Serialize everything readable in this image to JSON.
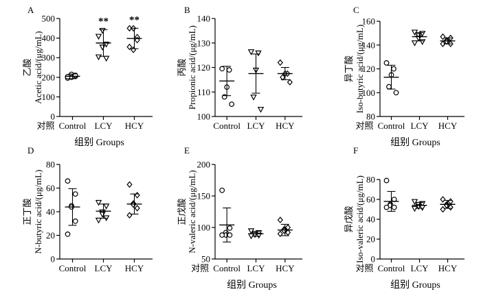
{
  "group_labels": [
    "Control",
    "LCY",
    "HCY"
  ],
  "chart_data": [
    {
      "panel_letter": "A",
      "type": "scatter",
      "ylabel_cn": "乙酸",
      "ylabel_en": "Acetic acid/(μg/mL)",
      "xlabel": "组别 Groups",
      "x_prefix": "对照",
      "ylim": [
        0,
        500
      ],
      "yticks": [
        0,
        100,
        200,
        300,
        400,
        500
      ],
      "marker_shapes": [
        "circle",
        "triangle-down",
        "diamond"
      ],
      "means": [
        205,
        375,
        398
      ],
      "sd": [
        12,
        68,
        52
      ],
      "points": [
        [
          196,
          205,
          215,
          200,
          210,
          203
        ],
        [
          305,
          370,
          440,
          355,
          298,
          410
        ],
        [
          355,
          405,
          450,
          340,
          390,
          450
        ]
      ],
      "significance": [
        "",
        "**",
        "**"
      ]
    },
    {
      "panel_letter": "B",
      "type": "scatter",
      "ylabel_cn": "丙酸",
      "ylabel_en": "Propionic acid/(μg/mL)",
      "xlabel": "",
      "x_prefix": "",
      "ylim": [
        100,
        140
      ],
      "yticks": [
        100,
        110,
        120,
        130,
        140
      ],
      "marker_shapes": [
        "circle",
        "triangle-down",
        "diamond"
      ],
      "means": [
        114.5,
        117.5,
        117.5
      ],
      "sd": [
        6,
        8,
        2.5
      ],
      "points": [
        [
          119.5,
          119,
          112,
          108,
          105
        ],
        [
          126.5,
          126,
          119,
          108,
          103
        ],
        [
          122,
          117.5,
          117.5,
          116,
          114
        ]
      ],
      "significance": [
        "",
        "",
        ""
      ]
    },
    {
      "panel_letter": "C",
      "type": "scatter",
      "ylabel_cn": "异丁酸",
      "ylabel_en": "Iso-butyric acid/(μg/mL)",
      "xlabel": "组别 Groups",
      "x_prefix": "对照",
      "ylim": [
        80,
        160
      ],
      "yticks": [
        80,
        100,
        120,
        140,
        160
      ],
      "marker_shapes": [
        "circle",
        "triangle-down",
        "diamond"
      ],
      "means": [
        113,
        147,
        143.5
      ],
      "sd": [
        10,
        3.5,
        2.5
      ],
      "points": [
        [
          125,
          120,
          115,
          105,
          100
        ],
        [
          151,
          150,
          148,
          146,
          143,
          142
        ],
        [
          147,
          146,
          144,
          143,
          141,
          141
        ]
      ],
      "significance": [
        "",
        "",
        ""
      ]
    },
    {
      "panel_letter": "D",
      "type": "scatter",
      "ylabel_cn": "正丁酸",
      "ylabel_en": "N-butyric acid/(μg/mL)",
      "xlabel": "",
      "x_prefix": "",
      "ylim": [
        0,
        80
      ],
      "yticks": [
        0,
        20,
        40,
        60,
        80
      ],
      "marker_shapes": [
        "circle",
        "triangle-down",
        "diamond"
      ],
      "means": [
        44,
        40.5,
        46.5
      ],
      "sd": [
        15.5,
        6,
        8.5
      ],
      "points": [
        [
          66,
          55,
          45,
          44,
          32,
          21
        ],
        [
          48,
          45,
          40,
          38,
          35,
          33
        ],
        [
          63,
          54,
          47,
          46,
          43,
          37
        ]
      ],
      "significance": [
        "",
        "",
        ""
      ]
    },
    {
      "panel_letter": "E",
      "type": "scatter",
      "ylabel_cn": "正戊酸",
      "ylabel_en": "N-valeric acid/(μg/mL)",
      "xlabel": "组别 Groups",
      "x_prefix": "对照",
      "ylim": [
        50,
        200
      ],
      "yticks": [
        50,
        100,
        150,
        200
      ],
      "marker_shapes": [
        "circle",
        "triangle-down",
        "diamond"
      ],
      "means": [
        104,
        90,
        96
      ],
      "sd": [
        27,
        4,
        9
      ],
      "points": [
        [
          159,
          99,
          92,
          88,
          88,
          88
        ],
        [
          95,
          92,
          91,
          89,
          88,
          87
        ],
        [
          112,
          100,
          97,
          95,
          92,
          90
        ]
      ],
      "significance": [
        "",
        "",
        ""
      ]
    },
    {
      "panel_letter": "F",
      "type": "scatter",
      "ylabel_cn": "异戊酸",
      "ylabel_en": "Iso-valeric acid/(μg/mL)",
      "xlabel": "组别 Groups",
      "x_prefix": "对照",
      "ylim": [
        0,
        80
      ],
      "yticks": [
        0,
        20,
        40,
        60,
        80
      ],
      "marker_shapes": [
        "circle",
        "triangle-down",
        "diamond"
      ],
      "means": [
        58,
        54,
        55
      ],
      "sd": [
        10,
        3,
        4
      ],
      "points": [
        [
          79,
          60,
          55,
          54,
          52,
          52
        ],
        [
          58,
          56,
          55,
          53,
          52,
          51
        ],
        [
          60,
          58,
          55,
          54,
          52,
          50
        ]
      ],
      "significance": [
        "",
        "",
        ""
      ]
    }
  ]
}
